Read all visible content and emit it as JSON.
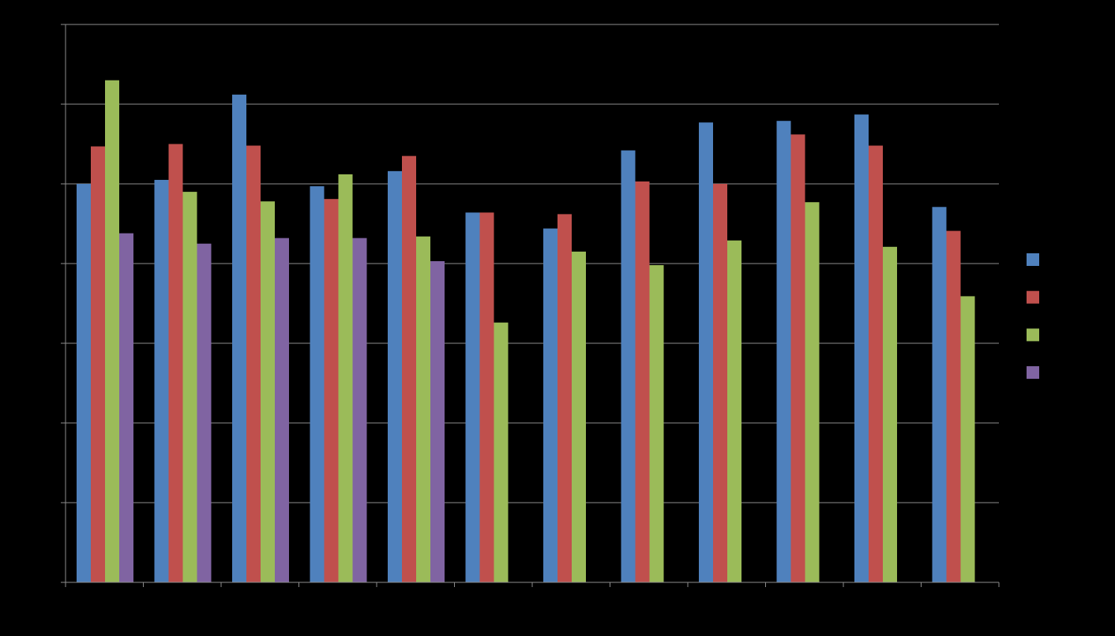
{
  "chart_data": {
    "type": "bar",
    "title": "",
    "xlabel": "",
    "ylabel": "",
    "ylim": [
      0,
      7
    ],
    "grid": true,
    "legend_position": "right",
    "categories": [
      "",
      "",
      "",
      "",
      "",
      "",
      "",
      "",
      "",
      "",
      "",
      ""
    ],
    "series": [
      {
        "color": "#4F81BD",
        "values": [
          5.0,
          5.05,
          6.12,
          4.97,
          5.16,
          4.64,
          4.44,
          5.42,
          5.77,
          5.79,
          5.87,
          4.71
        ]
      },
      {
        "color": "#C0504D",
        "values": [
          5.47,
          5.5,
          5.48,
          4.81,
          5.35,
          4.64,
          4.62,
          5.03,
          5.0,
          5.62,
          5.48,
          4.41
        ]
      },
      {
        "color": "#9BBB59",
        "values": [
          6.3,
          4.9,
          4.78,
          5.12,
          4.34,
          3.26,
          4.15,
          3.98,
          4.29,
          4.77,
          4.21,
          3.59
        ]
      },
      {
        "color": "#8064A2",
        "values": [
          4.38,
          4.25,
          4.32,
          4.32,
          4.03,
          null,
          null,
          null,
          null,
          null,
          null,
          null
        ]
      }
    ]
  },
  "style": {
    "background": "#000000",
    "gridline_color": "#8c8c8c",
    "axis_color": "#8c8c8c"
  }
}
